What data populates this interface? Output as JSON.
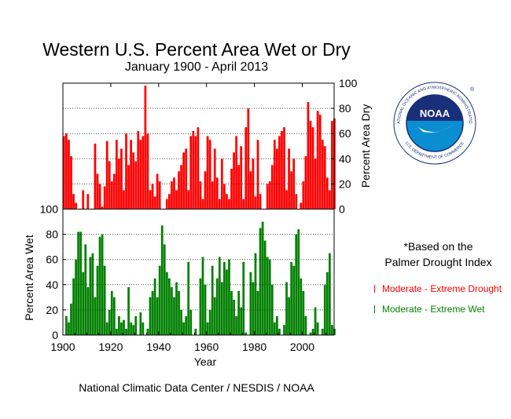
{
  "chart_data": {
    "type": "bar",
    "title": "Western U.S. Percent Area Wet or Dry",
    "subtitle": "January 1900 - April 2013",
    "xlabel": "Year",
    "xticks": [
      1900,
      1920,
      1940,
      1960,
      1980,
      2000
    ],
    "xlim": [
      1900,
      2013.3
    ],
    "series": [
      {
        "name": "Moderate - Extreme Drought",
        "axis_label": "Percent Area Dry",
        "color": "#ff0000",
        "ylim": [
          0,
          100
        ],
        "yticks": [
          0,
          20,
          40,
          60,
          80,
          100
        ],
        "x": [
          1900,
          1901,
          1902,
          1903,
          1904,
          1905,
          1906,
          1907,
          1908,
          1909,
          1910,
          1911,
          1912,
          1913,
          1914,
          1915,
          1916,
          1917,
          1918,
          1919,
          1920,
          1921,
          1922,
          1923,
          1924,
          1925,
          1926,
          1927,
          1928,
          1929,
          1930,
          1931,
          1932,
          1933,
          1934,
          1935,
          1936,
          1937,
          1938,
          1939,
          1940,
          1941,
          1942,
          1943,
          1944,
          1945,
          1946,
          1947,
          1948,
          1949,
          1950,
          1951,
          1952,
          1953,
          1954,
          1955,
          1956,
          1957,
          1958,
          1959,
          1960,
          1961,
          1962,
          1963,
          1964,
          1965,
          1966,
          1967,
          1968,
          1969,
          1970,
          1971,
          1972,
          1973,
          1974,
          1975,
          1976,
          1977,
          1978,
          1979,
          1980,
          1981,
          1982,
          1983,
          1984,
          1985,
          1986,
          1987,
          1988,
          1989,
          1990,
          1991,
          1992,
          1993,
          1994,
          1995,
          1996,
          1997,
          1998,
          1999,
          2000,
          2001,
          2002,
          2003,
          2004,
          2005,
          2006,
          2007,
          2008,
          2009,
          2010,
          2011,
          2012,
          2013
        ],
        "values": [
          58,
          60,
          55,
          42,
          12,
          5,
          0,
          0,
          15,
          0,
          12,
          0,
          0,
          52,
          28,
          20,
          2,
          18,
          54,
          38,
          22,
          28,
          55,
          40,
          48,
          15,
          60,
          35,
          55,
          45,
          38,
          62,
          55,
          58,
          98,
          60,
          15,
          20,
          10,
          28,
          22,
          0,
          0,
          8,
          12,
          22,
          25,
          15,
          30,
          35,
          45,
          48,
          15,
          58,
          62,
          58,
          65,
          22,
          8,
          30,
          58,
          55,
          22,
          48,
          25,
          8,
          40,
          20,
          12,
          8,
          32,
          45,
          58,
          35,
          50,
          8,
          65,
          80,
          30,
          40,
          10,
          55,
          12,
          0,
          0,
          20,
          22,
          35,
          55,
          48,
          58,
          62,
          65,
          15,
          48,
          30,
          40,
          12,
          0,
          5,
          22,
          42,
          85,
          70,
          65,
          40,
          78,
          75,
          55,
          50,
          25,
          15,
          70,
          72
        ]
      },
      {
        "name": "Moderate - Extreme Wet",
        "axis_label": "Percent Area Wet",
        "color": "#008000",
        "ylim": [
          0,
          100
        ],
        "yticks": [
          0,
          20,
          40,
          60,
          80,
          100
        ],
        "x": [
          1900,
          1901,
          1902,
          1903,
          1904,
          1905,
          1906,
          1907,
          1908,
          1909,
          1910,
          1911,
          1912,
          1913,
          1914,
          1915,
          1916,
          1917,
          1918,
          1919,
          1920,
          1921,
          1922,
          1923,
          1924,
          1925,
          1926,
          1927,
          1928,
          1929,
          1930,
          1931,
          1932,
          1933,
          1934,
          1935,
          1936,
          1937,
          1938,
          1939,
          1940,
          1941,
          1942,
          1943,
          1944,
          1945,
          1946,
          1947,
          1948,
          1949,
          1950,
          1951,
          1952,
          1953,
          1954,
          1955,
          1956,
          1957,
          1958,
          1959,
          1960,
          1961,
          1962,
          1963,
          1964,
          1965,
          1966,
          1967,
          1968,
          1969,
          1970,
          1971,
          1972,
          1973,
          1974,
          1975,
          1976,
          1977,
          1978,
          1979,
          1980,
          1981,
          1982,
          1983,
          1984,
          1985,
          1986,
          1987,
          1988,
          1989,
          1990,
          1991,
          1992,
          1993,
          1994,
          1995,
          1996,
          1997,
          1998,
          1999,
          2000,
          2001,
          2002,
          2003,
          2004,
          2005,
          2006,
          2007,
          2008,
          2009,
          2010,
          2011,
          2012,
          2013
        ],
        "values": [
          0,
          15,
          10,
          25,
          45,
          60,
          82,
          82,
          50,
          72,
          38,
          62,
          65,
          30,
          55,
          78,
          80,
          55,
          10,
          20,
          35,
          30,
          5,
          15,
          10,
          12,
          5,
          38,
          10,
          8,
          15,
          0,
          18,
          10,
          0,
          5,
          30,
          35,
          45,
          30,
          55,
          87,
          72,
          50,
          45,
          38,
          30,
          42,
          35,
          20,
          10,
          15,
          58,
          20,
          0,
          5,
          0,
          45,
          62,
          40,
          10,
          20,
          55,
          30,
          45,
          62,
          42,
          58,
          52,
          60,
          35,
          28,
          15,
          35,
          22,
          58,
          2,
          0,
          50,
          42,
          65,
          35,
          85,
          90,
          75,
          62,
          60,
          40,
          10,
          15,
          5,
          0,
          8,
          42,
          30,
          58,
          55,
          80,
          84,
          45,
          35,
          15,
          0,
          2,
          5,
          22,
          10,
          0,
          5,
          40,
          50,
          65,
          8,
          5
        ]
      }
    ]
  },
  "notes": {
    "based_on_line1": "*Based on the",
    "based_on_line2": "Palmer Drought Index"
  },
  "credit": "National Climatic Data Center / NESDIS / NOAA",
  "logo": {
    "wordmark": "NOAA",
    "ring_text_top": "NATIONAL OCEANIC AND ATMOSPHERIC ADMINISTRATION",
    "ring_text_bottom": "U.S. DEPARTMENT OF COMMERCE",
    "registered_mark": "®",
    "colors": {
      "navy": "#1a2f7a",
      "sky": "#0a8ed1",
      "ring": "#1a2f7a"
    }
  }
}
